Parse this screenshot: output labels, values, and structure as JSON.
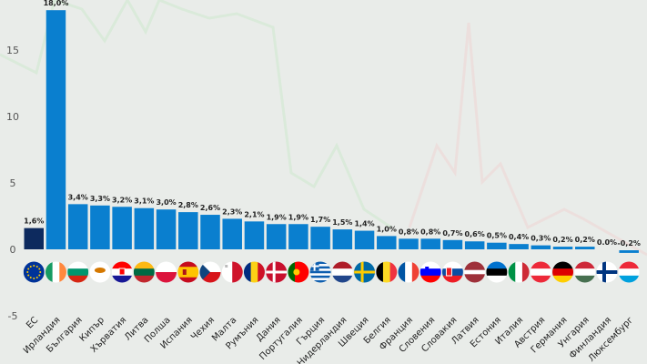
{
  "chart_data": {
    "type": "bar",
    "title": "",
    "xlabel": "",
    "ylabel": "",
    "ylim": [
      -5,
      18
    ],
    "yticks": [
      -5,
      0,
      5,
      10,
      15
    ],
    "grid": false,
    "colors": {
      "eu_bar": "#0d2a5e",
      "bar": "#0a7fcf",
      "text": "#222222",
      "axis_text": "#555555"
    },
    "categories": [
      "ЕС",
      "Ирландия",
      "България",
      "Кипър",
      "Хърватия",
      "Литва",
      "Полша",
      "Испания",
      "Чехия",
      "Малта",
      "Румъния",
      "Дания",
      "Португалия",
      "Гърция",
      "Нидерландия",
      "Швеция",
      "Белгия",
      "Франция",
      "Словения",
      "Словакия",
      "Латвия",
      "Естония",
      "Италия",
      "Австрия",
      "Германия",
      "Унгария",
      "Финландия",
      "Люксембург"
    ],
    "values": [
      1.6,
      18.0,
      3.4,
      3.3,
      3.2,
      3.1,
      3.0,
      2.8,
      2.6,
      2.3,
      2.1,
      1.9,
      1.9,
      1.7,
      1.5,
      1.4,
      1.0,
      0.8,
      0.8,
      0.7,
      0.6,
      0.5,
      0.4,
      0.3,
      0.2,
      0.2,
      0.0,
      -0.2
    ],
    "data_labels": [
      "1,6%",
      "18,0%",
      "3,4%",
      "3,3%",
      "3,2%",
      "3,1%",
      "3,0%",
      "2,8%",
      "2,6%",
      "2,3%",
      "2,1%",
      "1,9%",
      "1,9%",
      "1,7%",
      "1,5%",
      "1,4%",
      "1,0%",
      "0,8%",
      "0,8%",
      "0,7%",
      "0,6%",
      "0,5%",
      "0,4%",
      "0,3%",
      "0,2%",
      "0,2%",
      "0.0%",
      "-0,2%"
    ],
    "flag_icons": [
      "eu-flag",
      "ireland-flag",
      "bulgaria-flag",
      "cyprus-flag",
      "croatia-flag",
      "lithuania-flag",
      "poland-flag",
      "spain-flag",
      "czechia-flag",
      "malta-flag",
      "romania-flag",
      "denmark-flag",
      "portugal-flag",
      "greece-flag",
      "netherlands-flag",
      "sweden-flag",
      "belgium-flag",
      "france-flag",
      "slovenia-flag",
      "slovakia-flag",
      "latvia-flag",
      "estonia-flag",
      "italy-flag",
      "austria-flag",
      "germany-flag",
      "hungary-flag",
      "finland-flag",
      "luxembourg-flag"
    ]
  }
}
